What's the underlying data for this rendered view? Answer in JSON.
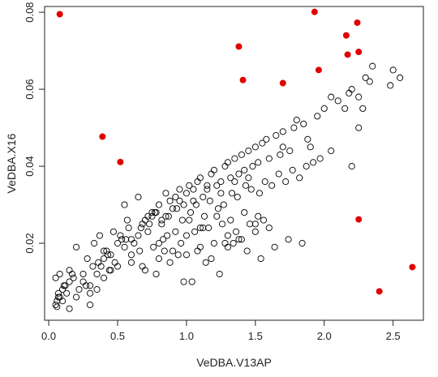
{
  "chart_data": {
    "type": "scatter",
    "title": "",
    "xlabel": "VeDBA.V13AP",
    "ylabel": "VeDBA.X16",
    "xlim": [
      -0.03,
      2.72
    ],
    "ylim": [
      0.0,
      0.0815
    ],
    "xticks": [
      0.0,
      0.5,
      1.0,
      1.5,
      2.0,
      2.5
    ],
    "xtick_labels": [
      "0.0",
      "0.5",
      "1.0",
      "1.5",
      "2.0",
      "2.5"
    ],
    "yticks": [
      0.02,
      0.04,
      0.06,
      0.08
    ],
    "ytick_labels": [
      "0.02",
      "0.04",
      "0.06",
      "0.08"
    ],
    "grid": false,
    "legend": "none",
    "colors": {
      "regular": "#000000",
      "highlight": "#e00000"
    },
    "series": [
      {
        "marker": "open-circle",
        "color": "#000000",
        "x": [
          0.05,
          0.06,
          0.06,
          0.07,
          0.07,
          0.08,
          0.1,
          0.12,
          0.13,
          0.15,
          0.17,
          0.18,
          0.05,
          0.08,
          0.11,
          0.15,
          0.22,
          0.25,
          0.27,
          0.3,
          0.32,
          0.35,
          0.36,
          0.38,
          0.4,
          0.42,
          0.44,
          0.45,
          0.48,
          0.5,
          0.52,
          0.55,
          0.58,
          0.6,
          0.65,
          0.68,
          0.7,
          0.72,
          0.75,
          0.78,
          0.8,
          0.82,
          0.85,
          0.88,
          0.9,
          0.92,
          0.95,
          0.98,
          1.0,
          1.02,
          1.05,
          1.08,
          1.1,
          1.12,
          1.15,
          1.18,
          1.2,
          1.22,
          1.25,
          1.28,
          1.3,
          1.32,
          1.35,
          1.38,
          1.4,
          1.42,
          1.45,
          1.48,
          1.5,
          1.52,
          1.55,
          1.58,
          1.6,
          1.65,
          1.68,
          1.7,
          1.75,
          1.78,
          1.8,
          1.85,
          1.88,
          1.9,
          1.95,
          2.0,
          2.05,
          2.1,
          2.15,
          2.18,
          2.2,
          2.25,
          2.3,
          2.35,
          0.2,
          0.28,
          0.33,
          0.37,
          0.43,
          0.47,
          0.53,
          0.57,
          0.62,
          0.67,
          0.73,
          0.77,
          0.83,
          0.87,
          0.93,
          0.97,
          1.03,
          1.07,
          1.13,
          1.17,
          1.23,
          1.27,
          1.33,
          1.37,
          1.43,
          1.47,
          1.53,
          1.57,
          1.62,
          1.67,
          1.72,
          1.77,
          1.82,
          1.87,
          1.92,
          1.97,
          0.3,
          0.4,
          0.5,
          0.6,
          0.7,
          0.8,
          0.9,
          1.0,
          1.1,
          1.2,
          1.3,
          1.4,
          1.5,
          1.6,
          0.55,
          0.65,
          0.75,
          0.85,
          0.95,
          1.05,
          1.15,
          1.25,
          1.35,
          1.45,
          0.78,
          0.88,
          0.98,
          1.08,
          1.18,
          1.28,
          1.38,
          0.72,
          0.82,
          0.92,
          1.02,
          1.12,
          1.22,
          1.32,
          1.42,
          1.52,
          2.25,
          2.28,
          2.33,
          2.5,
          2.55,
          2.48,
          0.45,
          0.6,
          0.8,
          1.0,
          1.1,
          1.3,
          1.5,
          1.7,
          2.2,
          2.05,
          0.1,
          0.2,
          0.3,
          0.35,
          0.15,
          0.25,
          0.4,
          0.56,
          0.66,
          0.76,
          0.86,
          0.96,
          1.06,
          1.16,
          1.26,
          1.36,
          1.46,
          1.56,
          0.68,
          0.84,
          0.94,
          1.04,
          1.14,
          1.24,
          1.34,
          1.44,
          1.54,
          1.64,
          1.74,
          1.84
        ],
        "y": [
          0.004,
          0.0035,
          0.005,
          0.006,
          0.007,
          0.006,
          0.008,
          0.009,
          0.007,
          0.01,
          0.012,
          0.011,
          0.011,
          0.012,
          0.009,
          0.013,
          0.008,
          0.01,
          0.009,
          0.004,
          0.014,
          0.012,
          0.015,
          0.014,
          0.016,
          0.018,
          0.013,
          0.017,
          0.015,
          0.02,
          0.022,
          0.019,
          0.024,
          0.021,
          0.022,
          0.025,
          0.026,
          0.023,
          0.027,
          0.028,
          0.03,
          0.026,
          0.027,
          0.031,
          0.029,
          0.032,
          0.034,
          0.03,
          0.033,
          0.035,
          0.031,
          0.036,
          0.037,
          0.032,
          0.034,
          0.038,
          0.039,
          0.035,
          0.036,
          0.04,
          0.041,
          0.037,
          0.042,
          0.038,
          0.043,
          0.039,
          0.044,
          0.04,
          0.045,
          0.041,
          0.046,
          0.047,
          0.042,
          0.048,
          0.043,
          0.049,
          0.044,
          0.05,
          0.052,
          0.051,
          0.047,
          0.045,
          0.053,
          0.055,
          0.058,
          0.057,
          0.055,
          0.059,
          0.06,
          0.058,
          0.063,
          0.066,
          0.019,
          0.016,
          0.02,
          0.022,
          0.017,
          0.023,
          0.021,
          0.026,
          0.02,
          0.024,
          0.025,
          0.028,
          0.021,
          0.027,
          0.029,
          0.026,
          0.028,
          0.03,
          0.027,
          0.031,
          0.029,
          0.03,
          0.033,
          0.032,
          0.035,
          0.034,
          0.033,
          0.036,
          0.035,
          0.038,
          0.036,
          0.039,
          0.037,
          0.04,
          0.041,
          0.042,
          0.007,
          0.011,
          0.014,
          0.015,
          0.013,
          0.016,
          0.018,
          0.017,
          0.019,
          0.02,
          0.022,
          0.021,
          0.023,
          0.024,
          0.03,
          0.032,
          0.028,
          0.033,
          0.031,
          0.034,
          0.035,
          0.033,
          0.036,
          0.037,
          0.012,
          0.015,
          0.01,
          0.018,
          0.016,
          0.02,
          0.021,
          0.027,
          0.025,
          0.023,
          0.026,
          0.024,
          0.027,
          0.026,
          0.028,
          0.027,
          0.05,
          0.055,
          0.062,
          0.065,
          0.063,
          0.061,
          0.013,
          0.017,
          0.02,
          0.022,
          0.024,
          0.019,
          0.025,
          0.045,
          0.04,
          0.044,
          0.005,
          0.006,
          0.009,
          0.008,
          0.003,
          0.012,
          0.018,
          0.021,
          0.018,
          0.019,
          0.022,
          0.02,
          0.023,
          0.024,
          0.025,
          0.023,
          0.025,
          0.026,
          0.014,
          0.018,
          0.017,
          0.01,
          0.015,
          0.012,
          0.02,
          0.018,
          0.016,
          0.019,
          0.021,
          0.02
        ]
      },
      {
        "marker": "filled-circle",
        "color": "#e00000",
        "x": [
          0.08,
          0.39,
          0.52,
          1.38,
          1.41,
          1.7,
          1.93,
          1.96,
          2.16,
          2.17,
          2.24,
          2.25,
          2.25,
          2.4,
          2.64
        ],
        "y": [
          0.0795,
          0.0477,
          0.0411,
          0.0711,
          0.0624,
          0.0616,
          0.0801,
          0.065,
          0.074,
          0.069,
          0.0773,
          0.0697,
          0.0262,
          0.0075,
          0.0138
        ]
      }
    ]
  }
}
